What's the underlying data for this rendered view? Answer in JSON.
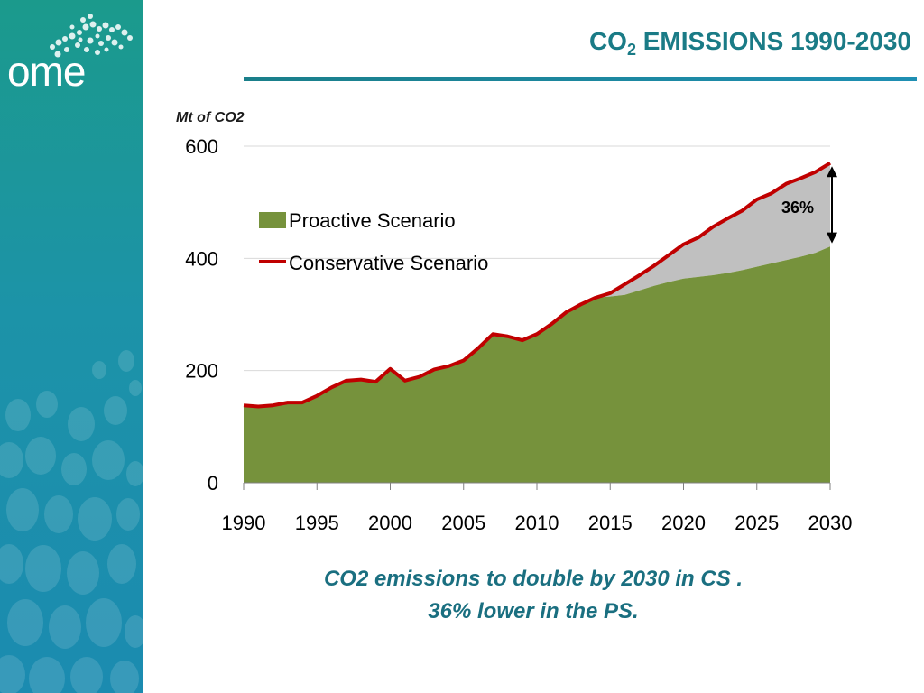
{
  "logo": {
    "text": "ome",
    "icon": "mediterranean-dots-logo"
  },
  "title": {
    "main": "CO",
    "subscript": "2",
    "rest": " EMISSIONS 1990-2030"
  },
  "colors": {
    "accent": "#1a7b86",
    "proactive_fill": "#76923c",
    "gap_fill": "#c0c0c0",
    "conservative_line": "#c00000"
  },
  "chart_data": {
    "type": "area",
    "ylabel": "Mt of CO2",
    "ylim": [
      0,
      600
    ],
    "yticks": [
      0,
      200,
      400,
      600
    ],
    "xlim": [
      1990,
      2030
    ],
    "xticks": [
      1990,
      1995,
      2000,
      2005,
      2010,
      2015,
      2020,
      2025,
      2030
    ],
    "grid": true,
    "legend_position": "top-left",
    "x": [
      1990,
      1991,
      1992,
      1993,
      1994,
      1995,
      1996,
      1997,
      1998,
      1999,
      2000,
      2001,
      2002,
      2003,
      2004,
      2005,
      2006,
      2007,
      2008,
      2009,
      2010,
      2011,
      2012,
      2013,
      2014,
      2015,
      2016,
      2017,
      2018,
      2019,
      2020,
      2021,
      2022,
      2023,
      2024,
      2025,
      2026,
      2027,
      2028,
      2029,
      2030
    ],
    "series": [
      {
        "name": "Proactive Scenario",
        "kind": "area",
        "values": [
          138,
          136,
          138,
          143,
          143,
          155,
          170,
          182,
          184,
          180,
          203,
          182,
          189,
          202,
          208,
          218,
          240,
          265,
          261,
          254,
          265,
          283,
          304,
          318,
          330,
          332,
          335,
          343,
          351,
          358,
          364,
          367,
          370,
          374,
          379,
          385,
          391,
          397,
          403,
          410,
          421
        ]
      },
      {
        "name": "Conservative Scenario",
        "kind": "line",
        "values": [
          138,
          136,
          138,
          143,
          143,
          155,
          170,
          182,
          184,
          180,
          203,
          182,
          189,
          202,
          208,
          218,
          240,
          265,
          261,
          254,
          265,
          283,
          304,
          318,
          330,
          338,
          354,
          370,
          387,
          406,
          425,
          437,
          456,
          471,
          485,
          505,
          516,
          533,
          543,
          554,
          570
        ]
      }
    ],
    "annotations": [
      {
        "text": "36%",
        "x": 2030,
        "from": 421,
        "to": 570
      }
    ]
  },
  "caption": {
    "line1": "CO2 emissions to double by 2030 in CS .",
    "line2": "36% lower in the PS."
  }
}
